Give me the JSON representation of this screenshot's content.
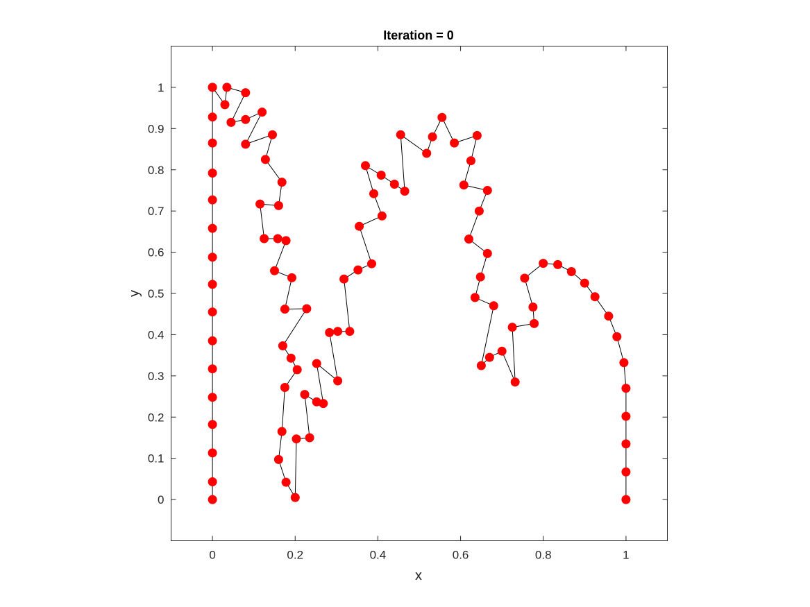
{
  "chart_data": {
    "type": "line",
    "title": "Iteration = 0",
    "xlabel": "x",
    "ylabel": "y",
    "xlim": [
      -0.1,
      1.1
    ],
    "ylim": [
      -0.1,
      1.1
    ],
    "xticks": [
      0,
      0.2,
      0.4,
      0.6,
      0.8,
      1
    ],
    "xtick_labels": [
      "0",
      "0.2",
      "0.4",
      "0.6",
      "0.8",
      "1"
    ],
    "yticks": [
      0,
      0.1,
      0.2,
      0.3,
      0.4,
      0.5,
      0.6,
      0.7,
      0.8,
      0.9,
      1
    ],
    "ytick_labels": [
      "0",
      "0.1",
      "0.2",
      "0.3",
      "0.4",
      "0.5",
      "0.6",
      "0.7",
      "0.8",
      "0.9",
      "1"
    ],
    "grid": false,
    "line_color": "#000000",
    "marker_color": "#ff0000",
    "series": [
      {
        "x": [
          0,
          0,
          0,
          0,
          0,
          0,
          0,
          0,
          0,
          0,
          0,
          0,
          0,
          0,
          0,
          0,
          0,
          0.03,
          0.035,
          0.08,
          0.045,
          0.08,
          0.12,
          0.08,
          0.145,
          0.128,
          0.168,
          0.16,
          0.115,
          0.125,
          0.158,
          0.178,
          0.15,
          0.192,
          0.175,
          0.228,
          0.17,
          0.19,
          0.205,
          0.175,
          0.168,
          0.16,
          0.178,
          0.2,
          0.203,
          0.235,
          0.223,
          0.252,
          0.268,
          0.252,
          0.303,
          0.283,
          0.303,
          0.332,
          0.318,
          0.352,
          0.385,
          0.355,
          0.41,
          0.39,
          0.37,
          0.408,
          0.44,
          0.465,
          0.455,
          0.518,
          0.532,
          0.555,
          0.585,
          0.64,
          0.625,
          0.608,
          0.665,
          0.645,
          0.62,
          0.665,
          0.648,
          0.635,
          0.68,
          0.65,
          0.67,
          0.7,
          0.732,
          0.725,
          0.778,
          0.775,
          0.755,
          0.8,
          0.835,
          0.868,
          0.9,
          0.925,
          0.958,
          0.978,
          0.995,
          1,
          1,
          1,
          1,
          1
        ],
        "y": [
          0,
          0.043,
          0.113,
          0.182,
          0.248,
          0.317,
          0.385,
          0.455,
          0.522,
          0.588,
          0.658,
          0.727,
          0.792,
          0.865,
          0.928,
          1.0,
          1.0,
          0.958,
          1.0,
          0.987,
          0.915,
          0.922,
          0.94,
          0.862,
          0.885,
          0.825,
          0.77,
          0.713,
          0.717,
          0.633,
          0.633,
          0.628,
          0.555,
          0.538,
          0.462,
          0.463,
          0.373,
          0.343,
          0.315,
          0.272,
          0.165,
          0.097,
          0.042,
          0.005,
          0.147,
          0.15,
          0.255,
          0.237,
          0.233,
          0.33,
          0.288,
          0.405,
          0.408,
          0.408,
          0.535,
          0.557,
          0.572,
          0.663,
          0.688,
          0.742,
          0.81,
          0.787,
          0.765,
          0.748,
          0.885,
          0.84,
          0.88,
          0.927,
          0.865,
          0.883,
          0.822,
          0.763,
          0.75,
          0.7,
          0.632,
          0.597,
          0.54,
          0.49,
          0.47,
          0.325,
          0.345,
          0.36,
          0.285,
          0.418,
          0.427,
          0.467,
          0.537,
          0.573,
          0.57,
          0.553,
          0.525,
          0.492,
          0.445,
          0.395,
          0.332,
          0.27,
          0.202,
          0.135,
          0.067,
          0
        ]
      }
    ]
  }
}
